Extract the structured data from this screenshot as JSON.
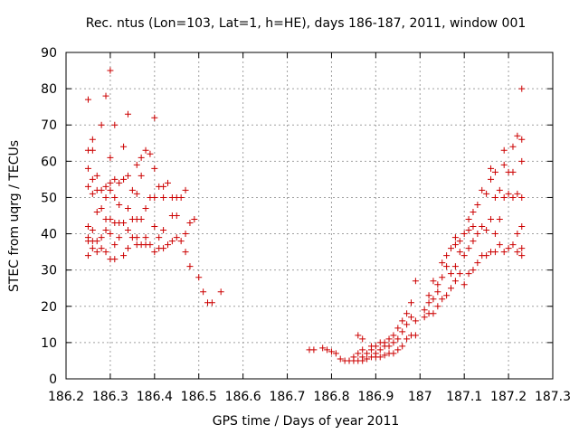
{
  "chart_data": {
    "type": "scatter",
    "title": "Rec. ntus (Lon=103, Lat=1, h=HE), days 186-187, 2011, window 001",
    "xlabel": "GPS time / Days of year 2011",
    "ylabel": "STEC from uqrg / TECUs",
    "xlim": [
      186.2,
      187.3
    ],
    "ylim": [
      0,
      90
    ],
    "x_ticks": [
      186.2,
      186.3,
      186.4,
      186.5,
      186.6,
      186.7,
      186.8,
      186.9,
      187,
      187.1,
      187.2,
      187.3
    ],
    "x_tick_labels": [
      "186.2",
      "186.3",
      "186.4",
      "186.5",
      "186.6",
      "186.7",
      "186.8",
      "186.9",
      "187",
      "187.1",
      "187.2",
      "187.3"
    ],
    "y_ticks": [
      0,
      10,
      20,
      30,
      40,
      50,
      60,
      70,
      80,
      90
    ],
    "y_tick_labels": [
      "0",
      "10",
      "20",
      "30",
      "40",
      "50",
      "60",
      "70",
      "80",
      "90"
    ],
    "grid": true,
    "marker": "plus",
    "color": "#cc0000",
    "points": [
      [
        186.25,
        77
      ],
      [
        186.25,
        63
      ],
      [
        186.25,
        58
      ],
      [
        186.25,
        53
      ],
      [
        186.25,
        42
      ],
      [
        186.25,
        39
      ],
      [
        186.25,
        38
      ],
      [
        186.25,
        34
      ],
      [
        186.26,
        66
      ],
      [
        186.26,
        63
      ],
      [
        186.26,
        55
      ],
      [
        186.26,
        51
      ],
      [
        186.26,
        41
      ],
      [
        186.26,
        36
      ],
      [
        186.26,
        38
      ],
      [
        186.27,
        56
      ],
      [
        186.27,
        52
      ],
      [
        186.27,
        46
      ],
      [
        186.27,
        38
      ],
      [
        186.27,
        35
      ],
      [
        186.28,
        70
      ],
      [
        186.28,
        52
      ],
      [
        186.28,
        47
      ],
      [
        186.28,
        39
      ],
      [
        186.28,
        36
      ],
      [
        186.29,
        78
      ],
      [
        186.29,
        53
      ],
      [
        186.29,
        50
      ],
      [
        186.29,
        44
      ],
      [
        186.29,
        41
      ],
      [
        186.29,
        35
      ],
      [
        186.3,
        85
      ],
      [
        186.3,
        61
      ],
      [
        186.3,
        54
      ],
      [
        186.3,
        52
      ],
      [
        186.3,
        44
      ],
      [
        186.3,
        40
      ],
      [
        186.3,
        33
      ],
      [
        186.31,
        70
      ],
      [
        186.31,
        55
      ],
      [
        186.31,
        50
      ],
      [
        186.31,
        43
      ],
      [
        186.31,
        37
      ],
      [
        186.31,
        33
      ],
      [
        186.32,
        54
      ],
      [
        186.32,
        48
      ],
      [
        186.32,
        43
      ],
      [
        186.32,
        39
      ],
      [
        186.33,
        64
      ],
      [
        186.33,
        55
      ],
      [
        186.33,
        43
      ],
      [
        186.33,
        34
      ],
      [
        186.34,
        73
      ],
      [
        186.34,
        56
      ],
      [
        186.34,
        47
      ],
      [
        186.34,
        41
      ],
      [
        186.34,
        36
      ],
      [
        186.35,
        52
      ],
      [
        186.35,
        44
      ],
      [
        186.35,
        39
      ],
      [
        186.36,
        59
      ],
      [
        186.36,
        51
      ],
      [
        186.36,
        44
      ],
      [
        186.36,
        39
      ],
      [
        186.36,
        37
      ],
      [
        186.37,
        61
      ],
      [
        186.37,
        56
      ],
      [
        186.37,
        44
      ],
      [
        186.37,
        37
      ],
      [
        186.38,
        63
      ],
      [
        186.38,
        47
      ],
      [
        186.38,
        39
      ],
      [
        186.38,
        37
      ],
      [
        186.39,
        62
      ],
      [
        186.39,
        50
      ],
      [
        186.39,
        37
      ],
      [
        186.4,
        72
      ],
      [
        186.4,
        58
      ],
      [
        186.4,
        50
      ],
      [
        186.4,
        42
      ],
      [
        186.4,
        35
      ],
      [
        186.41,
        53
      ],
      [
        186.41,
        39
      ],
      [
        186.41,
        36
      ],
      [
        186.42,
        53
      ],
      [
        186.42,
        50
      ],
      [
        186.42,
        41
      ],
      [
        186.42,
        36
      ],
      [
        186.43,
        54
      ],
      [
        186.43,
        37
      ],
      [
        186.44,
        50
      ],
      [
        186.44,
        45
      ],
      [
        186.44,
        38
      ],
      [
        186.45,
        50
      ],
      [
        186.45,
        45
      ],
      [
        186.45,
        39
      ],
      [
        186.46,
        50
      ],
      [
        186.46,
        38
      ],
      [
        186.47,
        52
      ],
      [
        186.47,
        40
      ],
      [
        186.47,
        35
      ],
      [
        186.48,
        43
      ],
      [
        186.48,
        31
      ],
      [
        186.49,
        44
      ],
      [
        186.5,
        28
      ],
      [
        186.51,
        24
      ],
      [
        186.52,
        21
      ],
      [
        186.53,
        21
      ],
      [
        186.55,
        24
      ],
      [
        186.75,
        8
      ],
      [
        186.76,
        8
      ],
      [
        186.78,
        8.5
      ],
      [
        186.79,
        8
      ],
      [
        186.8,
        7.5
      ],
      [
        186.81,
        7
      ],
      [
        186.82,
        5.5
      ],
      [
        186.83,
        5
      ],
      [
        186.84,
        5
      ],
      [
        186.85,
        5
      ],
      [
        186.85,
        6
      ],
      [
        186.86,
        5
      ],
      [
        186.86,
        7
      ],
      [
        186.86,
        12
      ],
      [
        186.87,
        5
      ],
      [
        186.87,
        6
      ],
      [
        186.87,
        8
      ],
      [
        186.87,
        11
      ],
      [
        186.88,
        5.5
      ],
      [
        186.88,
        7
      ],
      [
        186.89,
        6
      ],
      [
        186.89,
        8
      ],
      [
        186.89,
        9
      ],
      [
        186.9,
        6
      ],
      [
        186.9,
        7
      ],
      [
        186.9,
        9
      ],
      [
        186.91,
        6
      ],
      [
        186.91,
        8
      ],
      [
        186.91,
        10
      ],
      [
        186.92,
        6.5
      ],
      [
        186.92,
        9
      ],
      [
        186.92,
        10
      ],
      [
        186.93,
        7
      ],
      [
        186.93,
        9
      ],
      [
        186.93,
        11
      ],
      [
        186.94,
        7
      ],
      [
        186.94,
        10
      ],
      [
        186.94,
        12
      ],
      [
        186.95,
        8
      ],
      [
        186.95,
        11
      ],
      [
        186.95,
        14
      ],
      [
        186.96,
        9
      ],
      [
        186.96,
        13
      ],
      [
        186.96,
        16
      ],
      [
        186.97,
        11
      ],
      [
        186.97,
        15
      ],
      [
        186.97,
        18
      ],
      [
        186.98,
        12
      ],
      [
        186.98,
        17
      ],
      [
        186.98,
        21
      ],
      [
        186.99,
        12
      ],
      [
        186.99,
        16
      ],
      [
        186.99,
        27
      ],
      [
        187.01,
        17
      ],
      [
        187.01,
        19
      ],
      [
        187.02,
        18
      ],
      [
        187.02,
        21
      ],
      [
        187.02,
        23
      ],
      [
        187.03,
        18
      ],
      [
        187.03,
        22
      ],
      [
        187.03,
        27
      ],
      [
        187.04,
        20
      ],
      [
        187.04,
        24
      ],
      [
        187.04,
        26
      ],
      [
        187.05,
        22
      ],
      [
        187.05,
        28
      ],
      [
        187.05,
        32
      ],
      [
        187.06,
        23
      ],
      [
        187.06,
        31
      ],
      [
        187.06,
        34
      ],
      [
        187.07,
        25
      ],
      [
        187.07,
        29
      ],
      [
        187.07,
        36
      ],
      [
        187.08,
        27
      ],
      [
        187.08,
        31
      ],
      [
        187.08,
        37
      ],
      [
        187.08,
        39
      ],
      [
        187.09,
        29
      ],
      [
        187.09,
        35
      ],
      [
        187.09,
        38
      ],
      [
        187.1,
        26
      ],
      [
        187.1,
        34
      ],
      [
        187.1,
        40
      ],
      [
        187.11,
        29
      ],
      [
        187.11,
        36
      ],
      [
        187.11,
        41
      ],
      [
        187.11,
        44
      ],
      [
        187.12,
        30
      ],
      [
        187.12,
        38
      ],
      [
        187.12,
        42
      ],
      [
        187.12,
        46
      ],
      [
        187.13,
        32
      ],
      [
        187.13,
        40
      ],
      [
        187.13,
        48
      ],
      [
        187.14,
        34
      ],
      [
        187.14,
        42
      ],
      [
        187.14,
        52
      ],
      [
        187.15,
        34
      ],
      [
        187.15,
        41
      ],
      [
        187.15,
        51
      ],
      [
        187.16,
        35
      ],
      [
        187.16,
        44
      ],
      [
        187.16,
        55
      ],
      [
        187.16,
        58
      ],
      [
        187.17,
        35
      ],
      [
        187.17,
        40
      ],
      [
        187.17,
        50
      ],
      [
        187.17,
        57
      ],
      [
        187.18,
        37
      ],
      [
        187.18,
        44
      ],
      [
        187.18,
        52
      ],
      [
        187.19,
        35
      ],
      [
        187.19,
        50
      ],
      [
        187.19,
        59
      ],
      [
        187.19,
        63
      ],
      [
        187.2,
        36
      ],
      [
        187.2,
        51
      ],
      [
        187.2,
        57
      ],
      [
        187.21,
        37
      ],
      [
        187.21,
        50
      ],
      [
        187.21,
        57
      ],
      [
        187.21,
        64
      ],
      [
        187.22,
        35
      ],
      [
        187.22,
        40
      ],
      [
        187.22,
        51
      ],
      [
        187.22,
        67
      ],
      [
        187.23,
        34
      ],
      [
        187.23,
        36
      ],
      [
        187.23,
        42
      ],
      [
        187.23,
        50
      ],
      [
        187.23,
        60
      ],
      [
        187.23,
        66
      ],
      [
        187.23,
        80
      ]
    ]
  }
}
